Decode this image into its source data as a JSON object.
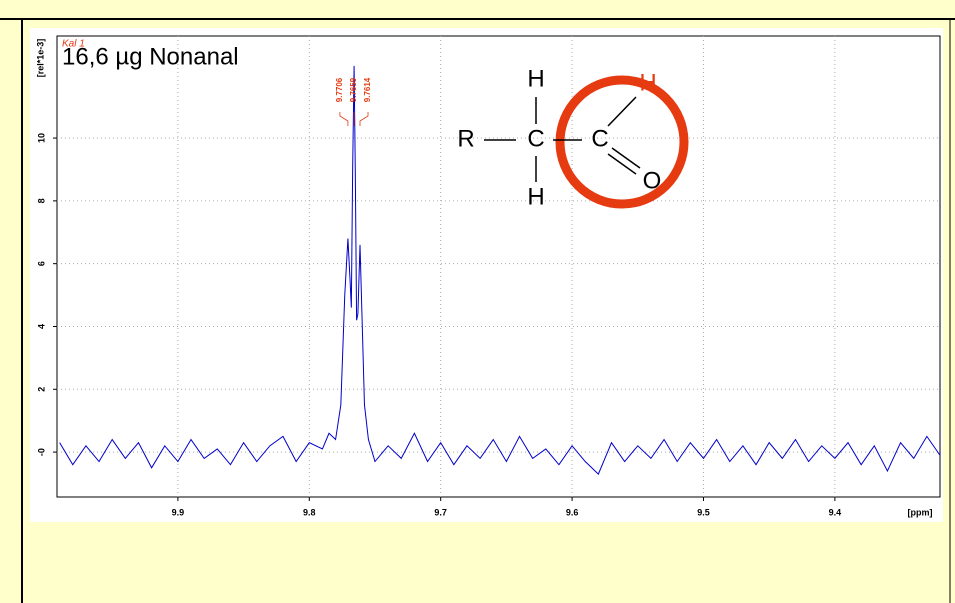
{
  "chart_data": {
    "type": "line",
    "annotations": [
      "16,6 µg Nonanal",
      "Kal 1"
    ],
    "xlabel": "[ppm]",
    "ylabel": "[rel*1e-3]",
    "peak_labels": [
      {
        "value": 9.7706,
        "label": "9.7706"
      },
      {
        "value": 9.7659,
        "label": "9.7659"
      },
      {
        "value": 9.7614,
        "label": "9.7614"
      }
    ],
    "structure": {
      "atoms": [
        "R",
        "C",
        "H",
        "H",
        "C",
        "H",
        "O"
      ]
    },
    "xlim": [
      9.992,
      9.32
    ],
    "ylim": [
      -1.43,
      13.25
    ],
    "xticks": [
      9.9,
      9.8,
      9.7,
      9.6,
      9.5,
      9.4
    ],
    "yticks": [
      {
        "value": 0,
        "label": "-0"
      },
      2,
      4,
      6,
      8,
      10
    ],
    "grid": true,
    "x": [
      9.99,
      9.98,
      9.97,
      9.96,
      9.95,
      9.94,
      9.93,
      9.92,
      9.91,
      9.9,
      9.89,
      9.88,
      9.87,
      9.86,
      9.85,
      9.84,
      9.83,
      9.82,
      9.81,
      9.8,
      9.79,
      9.785,
      9.78,
      9.776,
      9.773,
      9.7706,
      9.769,
      9.768,
      9.767,
      9.7659,
      9.765,
      9.764,
      9.763,
      9.7614,
      9.76,
      9.758,
      9.755,
      9.75,
      9.74,
      9.73,
      9.72,
      9.71,
      9.7,
      9.69,
      9.68,
      9.67,
      9.66,
      9.65,
      9.64,
      9.63,
      9.62,
      9.61,
      9.6,
      9.59,
      9.58,
      9.57,
      9.56,
      9.55,
      9.54,
      9.53,
      9.52,
      9.51,
      9.5,
      9.49,
      9.48,
      9.47,
      9.46,
      9.45,
      9.44,
      9.43,
      9.42,
      9.41,
      9.4,
      9.39,
      9.38,
      9.37,
      9.36,
      9.35,
      9.34,
      9.33,
      9.32
    ],
    "series": [
      {
        "color": "#0000cc",
        "values": [
          0.3,
          -0.4,
          0.2,
          -0.3,
          0.4,
          -0.2,
          0.3,
          -0.5,
          0.2,
          -0.3,
          0.4,
          -0.2,
          0.1,
          -0.4,
          0.3,
          -0.3,
          0.2,
          0.5,
          -0.3,
          0.3,
          0.1,
          0.6,
          0.4,
          1.5,
          5.0,
          6.8,
          5.5,
          4.6,
          9.0,
          12.3,
          9.0,
          4.2,
          4.4,
          6.6,
          4.5,
          1.5,
          0.4,
          -0.3,
          0.2,
          -0.2,
          0.6,
          -0.3,
          0.3,
          -0.4,
          0.2,
          -0.2,
          0.4,
          -0.3,
          0.5,
          -0.2,
          0.1,
          -0.4,
          0.2,
          -0.3,
          -0.7,
          0.3,
          -0.3,
          0.2,
          -0.2,
          0.4,
          -0.3,
          0.3,
          -0.2,
          0.4,
          -0.3,
          0.2,
          -0.4,
          0.3,
          -0.2,
          0.4,
          -0.3,
          0.2,
          -0.2,
          0.3,
          -0.4,
          0.2,
          -0.6,
          0.3,
          -0.2,
          0.5,
          -0.1
        ]
      }
    ]
  }
}
